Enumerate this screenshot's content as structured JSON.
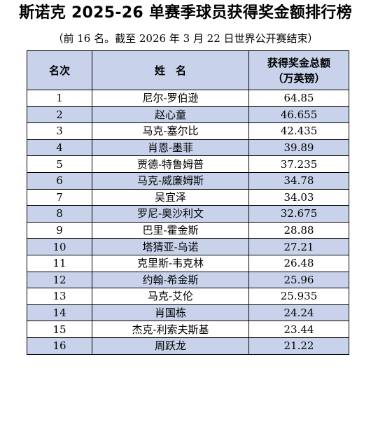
{
  "title": "斯诺克 2025-26 单赛季球员获得奖金额排行榜",
  "subtitle": "（前 16 名。截至 2026 年 3 月 22 日世界公开赛结束）",
  "colors": {
    "header_bg": "#c8d3eb",
    "stripe_bg": "#c8d3eb",
    "border": "#000000"
  },
  "table": {
    "headers": {
      "rank": "名次",
      "name": "姓　名",
      "prize_line1": "获得奖金总额",
      "prize_line2": "（万英镑）"
    },
    "rows": [
      {
        "rank": "1",
        "name": "尼尔-罗伯逊",
        "prize": "64.85"
      },
      {
        "rank": "2",
        "name": "赵心童",
        "prize": "46.655"
      },
      {
        "rank": "3",
        "name": "马克-塞尔比",
        "prize": "42.435"
      },
      {
        "rank": "4",
        "name": "肖恩-墨菲",
        "prize": "39.89"
      },
      {
        "rank": "5",
        "name": "贾德-特鲁姆普",
        "prize": "37.235"
      },
      {
        "rank": "6",
        "name": "马克-威廉姆斯",
        "prize": "34.78"
      },
      {
        "rank": "7",
        "name": "吴宜泽",
        "prize": "34.03"
      },
      {
        "rank": "8",
        "name": "罗尼-奥沙利文",
        "prize": "32.675"
      },
      {
        "rank": "9",
        "name": "巴里-霍金斯",
        "prize": "28.88"
      },
      {
        "rank": "10",
        "name": "塔猜亚-乌诺",
        "prize": "27.21"
      },
      {
        "rank": "11",
        "name": "克里斯-韦克林",
        "prize": "26.48"
      },
      {
        "rank": "12",
        "name": "约翰-希金斯",
        "prize": "25.96"
      },
      {
        "rank": "13",
        "name": "马克-艾伦",
        "prize": "25.935"
      },
      {
        "rank": "14",
        "name": "肖国栋",
        "prize": "24.24"
      },
      {
        "rank": "15",
        "name": "杰克-利索夫斯基",
        "prize": "23.44"
      },
      {
        "rank": "16",
        "name": "周跃龙",
        "prize": "21.22"
      }
    ]
  }
}
